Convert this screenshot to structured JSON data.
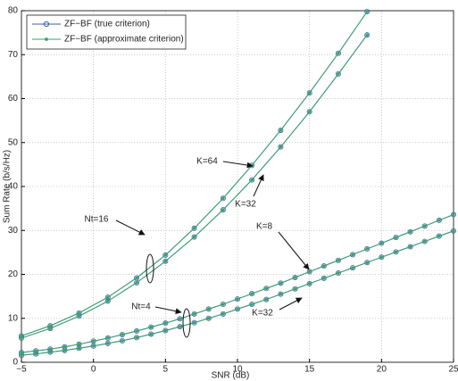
{
  "chart_data": {
    "type": "line",
    "xlabel": "SNR (dB)",
    "ylabel": "Sum Rate (b/s/Hz)",
    "xlim": [
      -5,
      25
    ],
    "ylim": [
      0,
      80
    ],
    "xticks": [
      {
        "value": -5,
        "label": "−5"
      },
      0,
      5,
      10,
      15,
      20,
      25
    ],
    "yticks": [
      0,
      10,
      20,
      30,
      40,
      50,
      60,
      70,
      80
    ],
    "grid": true,
    "legend": "top-left",
    "annotations": [
      "K=64",
      "K=32",
      "Nt=16",
      "K=8",
      "Nt=4",
      "K=32"
    ],
    "series": [
      {
        "name": "ZF−BF (true criterion)",
        "color": "#3a5fa8",
        "marker": "circle",
        "curves": [
          {
            "x": [
              -5,
              -3,
              -1,
              1,
              3,
              5,
              7,
              9,
              11,
              13,
              15,
              17,
              19
            ],
            "values": [
              6,
              8.3,
              11.2,
              14.8,
              19.2,
              24.4,
              30.5,
              37.3,
              44.8,
              52.8,
              61.3,
              70.3,
              79.8
            ]
          },
          {
            "x": [
              -5,
              -3,
              -1,
              1,
              3,
              5,
              7,
              9,
              11,
              13,
              15,
              17,
              19
            ],
            "values": [
              5.5,
              7.7,
              10.5,
              13.9,
              18.1,
              23,
              28.5,
              34.7,
              41.5,
              49,
              57,
              65.6,
              74.5
            ]
          },
          {
            "x": [
              -5,
              -4,
              -3,
              -2,
              -1,
              0,
              1,
              2,
              3,
              4,
              5,
              6,
              7,
              8,
              9,
              10,
              11,
              12,
              13,
              14,
              15,
              16,
              17,
              18,
              19,
              20,
              21,
              22,
              23,
              24,
              25
            ],
            "values": [
              2.2,
              2.6,
              3.0,
              3.5,
              4.1,
              4.8,
              5.5,
              6.3,
              7.1,
              8.0,
              8.9,
              9.9,
              11.0,
              12.1,
              13.2,
              14.4,
              15.6,
              16.8,
              18.0,
              19.3,
              20.6,
              21.9,
              23.2,
              24.5,
              25.8,
              27.1,
              28.4,
              29.7,
              31.0,
              32.3,
              33.6
            ]
          },
          {
            "x": [
              -5,
              -4,
              -3,
              -2,
              -1,
              0,
              1,
              2,
              3,
              4,
              5,
              6,
              7,
              8,
              9,
              10,
              11,
              12,
              13,
              14,
              15,
              16,
              17,
              18,
              19,
              20,
              21,
              22,
              23,
              24,
              25
            ],
            "values": [
              1.6,
              1.9,
              2.3,
              2.7,
              3.2,
              3.7,
              4.3,
              4.9,
              5.6,
              6.4,
              7.2,
              8.1,
              9.0,
              10.0,
              11.0,
              12.1,
              13.2,
              14.3,
              15.5,
              16.7,
              17.9,
              19.1,
              20.3,
              21.5,
              22.7,
              23.9,
              25.1,
              26.3,
              27.5,
              28.7,
              29.9
            ]
          }
        ]
      },
      {
        "name": "ZF−BF (approximate criterion)",
        "color": "#3aa36a",
        "marker": "dot",
        "curves": [
          {
            "x": [
              -5,
              -3,
              -1,
              1,
              3,
              5,
              7,
              9,
              11,
              13,
              15,
              17,
              19
            ],
            "values": [
              6,
              8.3,
              11.2,
              14.8,
              19.2,
              24.4,
              30.5,
              37.3,
              44.8,
              52.8,
              61.3,
              70.3,
              79.8
            ]
          },
          {
            "x": [
              -5,
              -3,
              -1,
              1,
              3,
              5,
              7,
              9,
              11,
              13,
              15,
              17,
              19
            ],
            "values": [
              5.5,
              7.7,
              10.5,
              13.9,
              18.1,
              23,
              28.5,
              34.7,
              41.5,
              49,
              57,
              65.6,
              74.5
            ]
          },
          {
            "x": [
              -5,
              -4,
              -3,
              -2,
              -1,
              0,
              1,
              2,
              3,
              4,
              5,
              6,
              7,
              8,
              9,
              10,
              11,
              12,
              13,
              14,
              15,
              16,
              17,
              18,
              19,
              20,
              21,
              22,
              23,
              24,
              25
            ],
            "values": [
              2.2,
              2.6,
              3.0,
              3.5,
              4.1,
              4.8,
              5.5,
              6.3,
              7.1,
              8.0,
              8.9,
              9.9,
              11.0,
              12.1,
              13.2,
              14.4,
              15.6,
              16.8,
              18.0,
              19.3,
              20.6,
              21.9,
              23.2,
              24.5,
              25.8,
              27.1,
              28.4,
              29.7,
              31.0,
              32.3,
              33.6
            ]
          },
          {
            "x": [
              -5,
              -4,
              -3,
              -2,
              -1,
              0,
              1,
              2,
              3,
              4,
              5,
              6,
              7,
              8,
              9,
              10,
              11,
              12,
              13,
              14,
              15,
              16,
              17,
              18,
              19,
              20,
              21,
              22,
              23,
              24,
              25
            ],
            "values": [
              1.6,
              1.9,
              2.3,
              2.7,
              3.2,
              3.7,
              4.3,
              4.9,
              5.6,
              6.4,
              7.2,
              8.1,
              9.0,
              10.0,
              11.0,
              12.1,
              13.2,
              14.3,
              15.5,
              16.7,
              17.9,
              19.1,
              20.3,
              21.5,
              22.7,
              23.9,
              25.1,
              26.3,
              27.5,
              28.7,
              29.9
            ]
          }
        ]
      }
    ]
  }
}
